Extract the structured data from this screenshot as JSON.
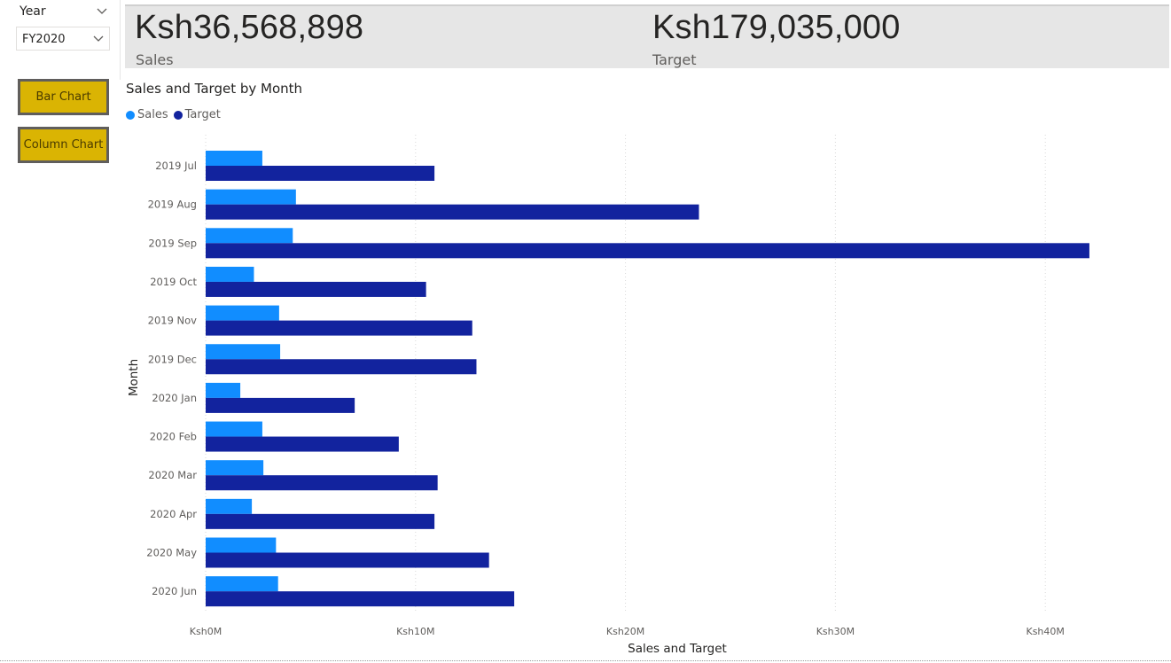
{
  "slicer": {
    "title": "Year",
    "selected": "FY2020"
  },
  "buttons": {
    "bar": "Bar Chart",
    "column": "Column Chart"
  },
  "kpis": [
    {
      "value": "Ksh36,568,898",
      "label": "Sales"
    },
    {
      "value": "Ksh179,035,000",
      "label": "Target"
    }
  ],
  "colors": {
    "sales": "#118dff",
    "target": "#12239e",
    "button": "#dab403",
    "kpi_band": "#e6e6e6"
  },
  "legend": {
    "sales": "Sales",
    "target": "Target"
  },
  "chart_data": {
    "type": "bar",
    "orientation": "horizontal",
    "title": "Sales and Target by Month",
    "xlabel": "Sales and Target",
    "ylabel": "Month",
    "xlim": [
      0,
      42000000
    ],
    "x_ticks": [
      0,
      10000000,
      20000000,
      30000000,
      40000000
    ],
    "x_tick_labels": [
      "Ksh0M",
      "Ksh10M",
      "Ksh20M",
      "Ksh30M",
      "Ksh40M"
    ],
    "categories": [
      "2019 Jul",
      "2019 Aug",
      "2019 Sep",
      "2019 Oct",
      "2019 Nov",
      "2019 Dec",
      "2020 Jan",
      "2020 Feb",
      "2020 Mar",
      "2020 Apr",
      "2020 May",
      "2020 Jun"
    ],
    "series": [
      {
        "name": "Sales",
        "values": [
          2700000,
          4300000,
          4150000,
          2300000,
          3500000,
          3550000,
          1650000,
          2700000,
          2750000,
          2200000,
          3350000,
          3450000
        ]
      },
      {
        "name": "Target",
        "values": [
          10900000,
          23500000,
          42100000,
          10500000,
          12700000,
          12900000,
          7100000,
          9200000,
          11050000,
          10900000,
          13500000,
          14700000
        ]
      }
    ],
    "legend_position": "top-left",
    "grid": true
  }
}
